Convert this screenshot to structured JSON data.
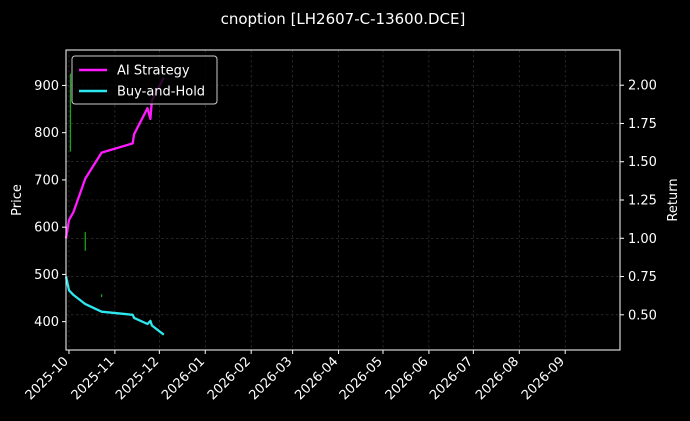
{
  "chart_data": {
    "type": "line",
    "title": "cnoption [LH2607-C-13600.DCE]",
    "xlabel": "",
    "ylabel_left": "Price",
    "ylabel_right": "Return",
    "x_ticks": [
      "2025-10",
      "2025-11",
      "2025-12",
      "2026-01",
      "2026-02",
      "2026-03",
      "2026-04",
      "2026-05",
      "2026-06",
      "2026-07",
      "2026-08",
      "2026-09"
    ],
    "xlim": [
      "2025-09-29",
      "2026-10-08"
    ],
    "ylim_left": [
      340,
      975
    ],
    "ylim_right": [
      0.27,
      2.23
    ],
    "y_ticks_left": [
      400,
      500,
      600,
      700,
      800,
      900
    ],
    "y_ticks_right": [
      "0.50",
      "0.75",
      "1.00",
      "1.25",
      "1.50",
      "1.75",
      "2.00"
    ],
    "grid": true,
    "legend_position": "top-left",
    "price_candles": [
      {
        "date": "2025-10-02",
        "low": 760,
        "high": 925,
        "color": "#1f9e1f"
      },
      {
        "date": "2025-10-12",
        "low": 550,
        "high": 590,
        "color": "#1f9e1f"
      },
      {
        "date": "2025-10-23",
        "low": 452,
        "high": 458,
        "color": "#1f9e1f"
      }
    ],
    "series": [
      {
        "name": "AI Strategy",
        "axis": "right",
        "color": "#ff1aff",
        "points": [
          [
            "2025-09-29",
            1.0
          ],
          [
            "2025-10-01",
            1.12
          ],
          [
            "2025-10-04",
            1.17
          ],
          [
            "2025-10-12",
            1.39
          ],
          [
            "2025-10-23",
            1.56
          ],
          [
            "2025-11-13",
            1.62
          ],
          [
            "2025-11-14",
            1.68
          ],
          [
            "2025-11-23",
            1.85
          ],
          [
            "2025-11-25",
            1.78
          ],
          [
            "2025-11-26",
            1.9
          ],
          [
            "2025-12-04",
            2.05
          ]
        ]
      },
      {
        "name": "Buy-and-Hold",
        "axis": "right",
        "color": "#2ee8f0",
        "points": [
          [
            "2025-09-29",
            0.75
          ],
          [
            "2025-10-01",
            0.66
          ],
          [
            "2025-10-04",
            0.63
          ],
          [
            "2025-10-12",
            0.57
          ],
          [
            "2025-10-23",
            0.52
          ],
          [
            "2025-11-13",
            0.5
          ],
          [
            "2025-11-14",
            0.48
          ],
          [
            "2025-11-23",
            0.44
          ],
          [
            "2025-11-25",
            0.46
          ],
          [
            "2025-11-26",
            0.43
          ],
          [
            "2025-12-04",
            0.37
          ]
        ]
      }
    ]
  }
}
